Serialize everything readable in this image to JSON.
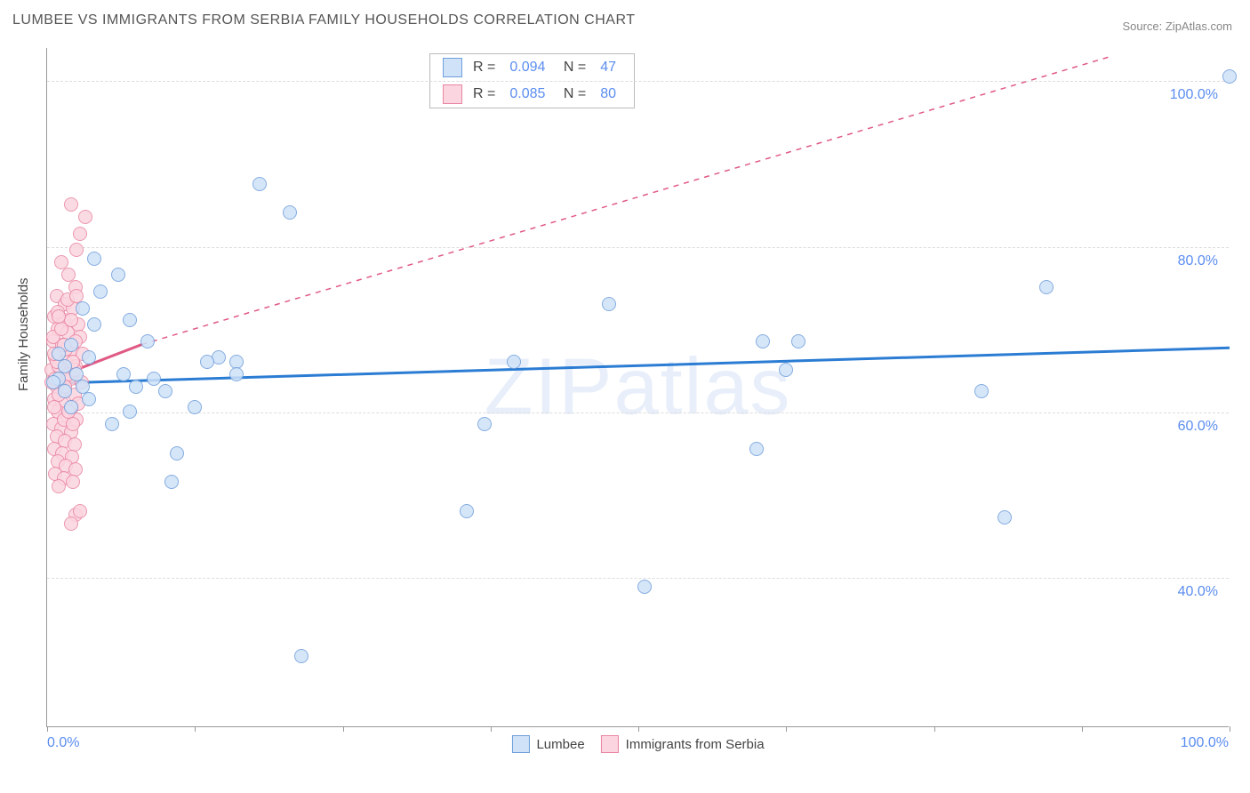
{
  "title": "LUMBEE VS IMMIGRANTS FROM SERBIA FAMILY HOUSEHOLDS CORRELATION CHART",
  "source": "Source: ZipAtlas.com",
  "watermark": "ZIPatlas",
  "y_axis_title": "Family Households",
  "chart": {
    "type": "scatter",
    "xlim": [
      0,
      100
    ],
    "ylim": [
      22,
      104
    ],
    "x_labels": {
      "min": "0.0%",
      "max": "100.0%"
    },
    "x_ticks": [
      0,
      12.5,
      25,
      37.5,
      50,
      62.5,
      75,
      87.5,
      100
    ],
    "y_gridlines": [
      40,
      60,
      80,
      100
    ],
    "y_tick_labels": [
      "40.0%",
      "60.0%",
      "80.0%",
      "100.0%"
    ],
    "background_color": "#ffffff",
    "grid_color": "#dddddd",
    "point_radius": 8,
    "series": [
      {
        "name": "Lumbee",
        "fill": "#cfe2f8",
        "stroke": "#6f9edb",
        "r_value": "0.094",
        "n_value": "47",
        "trend_color": "#2b7cd3",
        "trend_solid": {
          "x1": 0,
          "y1": 63.5,
          "x2": 100,
          "y2": 67.8
        },
        "points": [
          [
            100.0,
            100.5
          ],
          [
            84.5,
            75.0
          ],
          [
            81.0,
            47.2
          ],
          [
            79.0,
            62.5
          ],
          [
            62.5,
            65.0
          ],
          [
            63.5,
            68.5
          ],
          [
            60.5,
            68.5
          ],
          [
            60.0,
            55.5
          ],
          [
            50.5,
            38.8
          ],
          [
            47.5,
            73.0
          ],
          [
            39.5,
            66.0
          ],
          [
            37.0,
            58.5
          ],
          [
            35.5,
            48.0
          ],
          [
            21.5,
            30.5
          ],
          [
            18.0,
            87.5
          ],
          [
            20.5,
            84.0
          ],
          [
            16.0,
            66.0
          ],
          [
            16.0,
            64.5
          ],
          [
            14.5,
            66.5
          ],
          [
            13.5,
            66.0
          ],
          [
            12.5,
            60.5
          ],
          [
            11.0,
            55.0
          ],
          [
            10.5,
            51.5
          ],
          [
            10.0,
            62.5
          ],
          [
            9.0,
            64.0
          ],
          [
            8.5,
            68.5
          ],
          [
            7.5,
            63.0
          ],
          [
            7.0,
            71.0
          ],
          [
            7.0,
            60.0
          ],
          [
            6.0,
            76.5
          ],
          [
            6.5,
            64.5
          ],
          [
            5.5,
            58.5
          ],
          [
            4.5,
            74.5
          ],
          [
            4.0,
            70.5
          ],
          [
            4.0,
            78.5
          ],
          [
            3.5,
            66.5
          ],
          [
            3.5,
            61.5
          ],
          [
            3.0,
            63.0
          ],
          [
            3.0,
            72.5
          ],
          [
            2.5,
            64.5
          ],
          [
            2.0,
            68.0
          ],
          [
            2.0,
            60.5
          ],
          [
            1.5,
            65.5
          ],
          [
            1.5,
            62.5
          ],
          [
            1.0,
            64.0
          ],
          [
            1.0,
            67.0
          ],
          [
            0.5,
            63.5
          ]
        ]
      },
      {
        "name": "Immigrants from Serbia",
        "fill": "#fbd5df",
        "stroke": "#e985a2",
        "r_value": "0.085",
        "n_value": "80",
        "trend_color": "#e05a84",
        "trend_solid": {
          "x1": 0,
          "y1": 63.8,
          "x2": 8,
          "y2": 68.2
        },
        "trend_dashed": {
          "x1": 8,
          "y1": 68.2,
          "x2": 90,
          "y2": 103.0
        },
        "points": [
          [
            3.2,
            83.5
          ],
          [
            2.8,
            81.5
          ],
          [
            2.5,
            79.5
          ],
          [
            2.0,
            85.0
          ],
          [
            1.2,
            78.0
          ],
          [
            1.8,
            76.5
          ],
          [
            2.4,
            75.0
          ],
          [
            0.8,
            74.0
          ],
          [
            1.5,
            73.0
          ],
          [
            2.2,
            72.5
          ],
          [
            0.6,
            71.5
          ],
          [
            1.4,
            71.0
          ],
          [
            2.6,
            70.5
          ],
          [
            0.9,
            70.0
          ],
          [
            1.7,
            69.5
          ],
          [
            2.8,
            69.0
          ],
          [
            0.5,
            68.5
          ],
          [
            1.3,
            68.0
          ],
          [
            2.1,
            67.5
          ],
          [
            3.0,
            67.0
          ],
          [
            0.7,
            66.5
          ],
          [
            1.6,
            66.0
          ],
          [
            2.4,
            65.5
          ],
          [
            0.4,
            65.0
          ],
          [
            1.1,
            64.5
          ],
          [
            2.0,
            64.0
          ],
          [
            2.9,
            63.5
          ],
          [
            0.8,
            63.0
          ],
          [
            1.5,
            62.5
          ],
          [
            2.3,
            62.0
          ],
          [
            0.6,
            61.5
          ],
          [
            1.3,
            61.0
          ],
          [
            2.1,
            60.5
          ],
          [
            0.9,
            60.0
          ],
          [
            1.7,
            59.5
          ],
          [
            2.5,
            59.0
          ],
          [
            0.5,
            58.5
          ],
          [
            1.2,
            58.0
          ],
          [
            2.0,
            57.5
          ],
          [
            0.8,
            57.0
          ],
          [
            1.5,
            56.5
          ],
          [
            2.3,
            56.0
          ],
          [
            0.6,
            55.5
          ],
          [
            1.3,
            55.0
          ],
          [
            2.1,
            54.5
          ],
          [
            0.9,
            54.0
          ],
          [
            1.6,
            53.5
          ],
          [
            2.4,
            53.0
          ],
          [
            0.7,
            52.5
          ],
          [
            1.4,
            52.0
          ],
          [
            2.2,
            51.5
          ],
          [
            1.0,
            51.0
          ],
          [
            2.4,
            47.5
          ],
          [
            2.0,
            46.5
          ],
          [
            2.8,
            48.0
          ],
          [
            1.0,
            65.5
          ],
          [
            1.8,
            64.5
          ],
          [
            0.4,
            63.5
          ],
          [
            1.0,
            62.0
          ],
          [
            2.6,
            61.0
          ],
          [
            0.6,
            60.5
          ],
          [
            1.4,
            59.0
          ],
          [
            2.2,
            58.5
          ],
          [
            0.8,
            66.0
          ],
          [
            1.6,
            67.5
          ],
          [
            2.4,
            68.5
          ],
          [
            0.5,
            69.0
          ],
          [
            1.2,
            70.0
          ],
          [
            2.0,
            71.0
          ],
          [
            0.9,
            72.0
          ],
          [
            1.7,
            73.5
          ],
          [
            2.5,
            74.0
          ],
          [
            0.7,
            64.0
          ],
          [
            1.5,
            63.0
          ],
          [
            2.3,
            65.0
          ],
          [
            0.6,
            67.0
          ],
          [
            1.4,
            68.0
          ],
          [
            2.2,
            66.0
          ],
          [
            1.0,
            71.5
          ],
          [
            1.8,
            60.0
          ]
        ]
      }
    ]
  },
  "legend_bottom": {
    "items": [
      {
        "swatch_fill": "#cfe2f8",
        "swatch_stroke": "#6f9edb",
        "label": "Lumbee"
      },
      {
        "swatch_fill": "#fbd5df",
        "swatch_stroke": "#e985a2",
        "label": "Immigrants from Serbia"
      }
    ]
  }
}
